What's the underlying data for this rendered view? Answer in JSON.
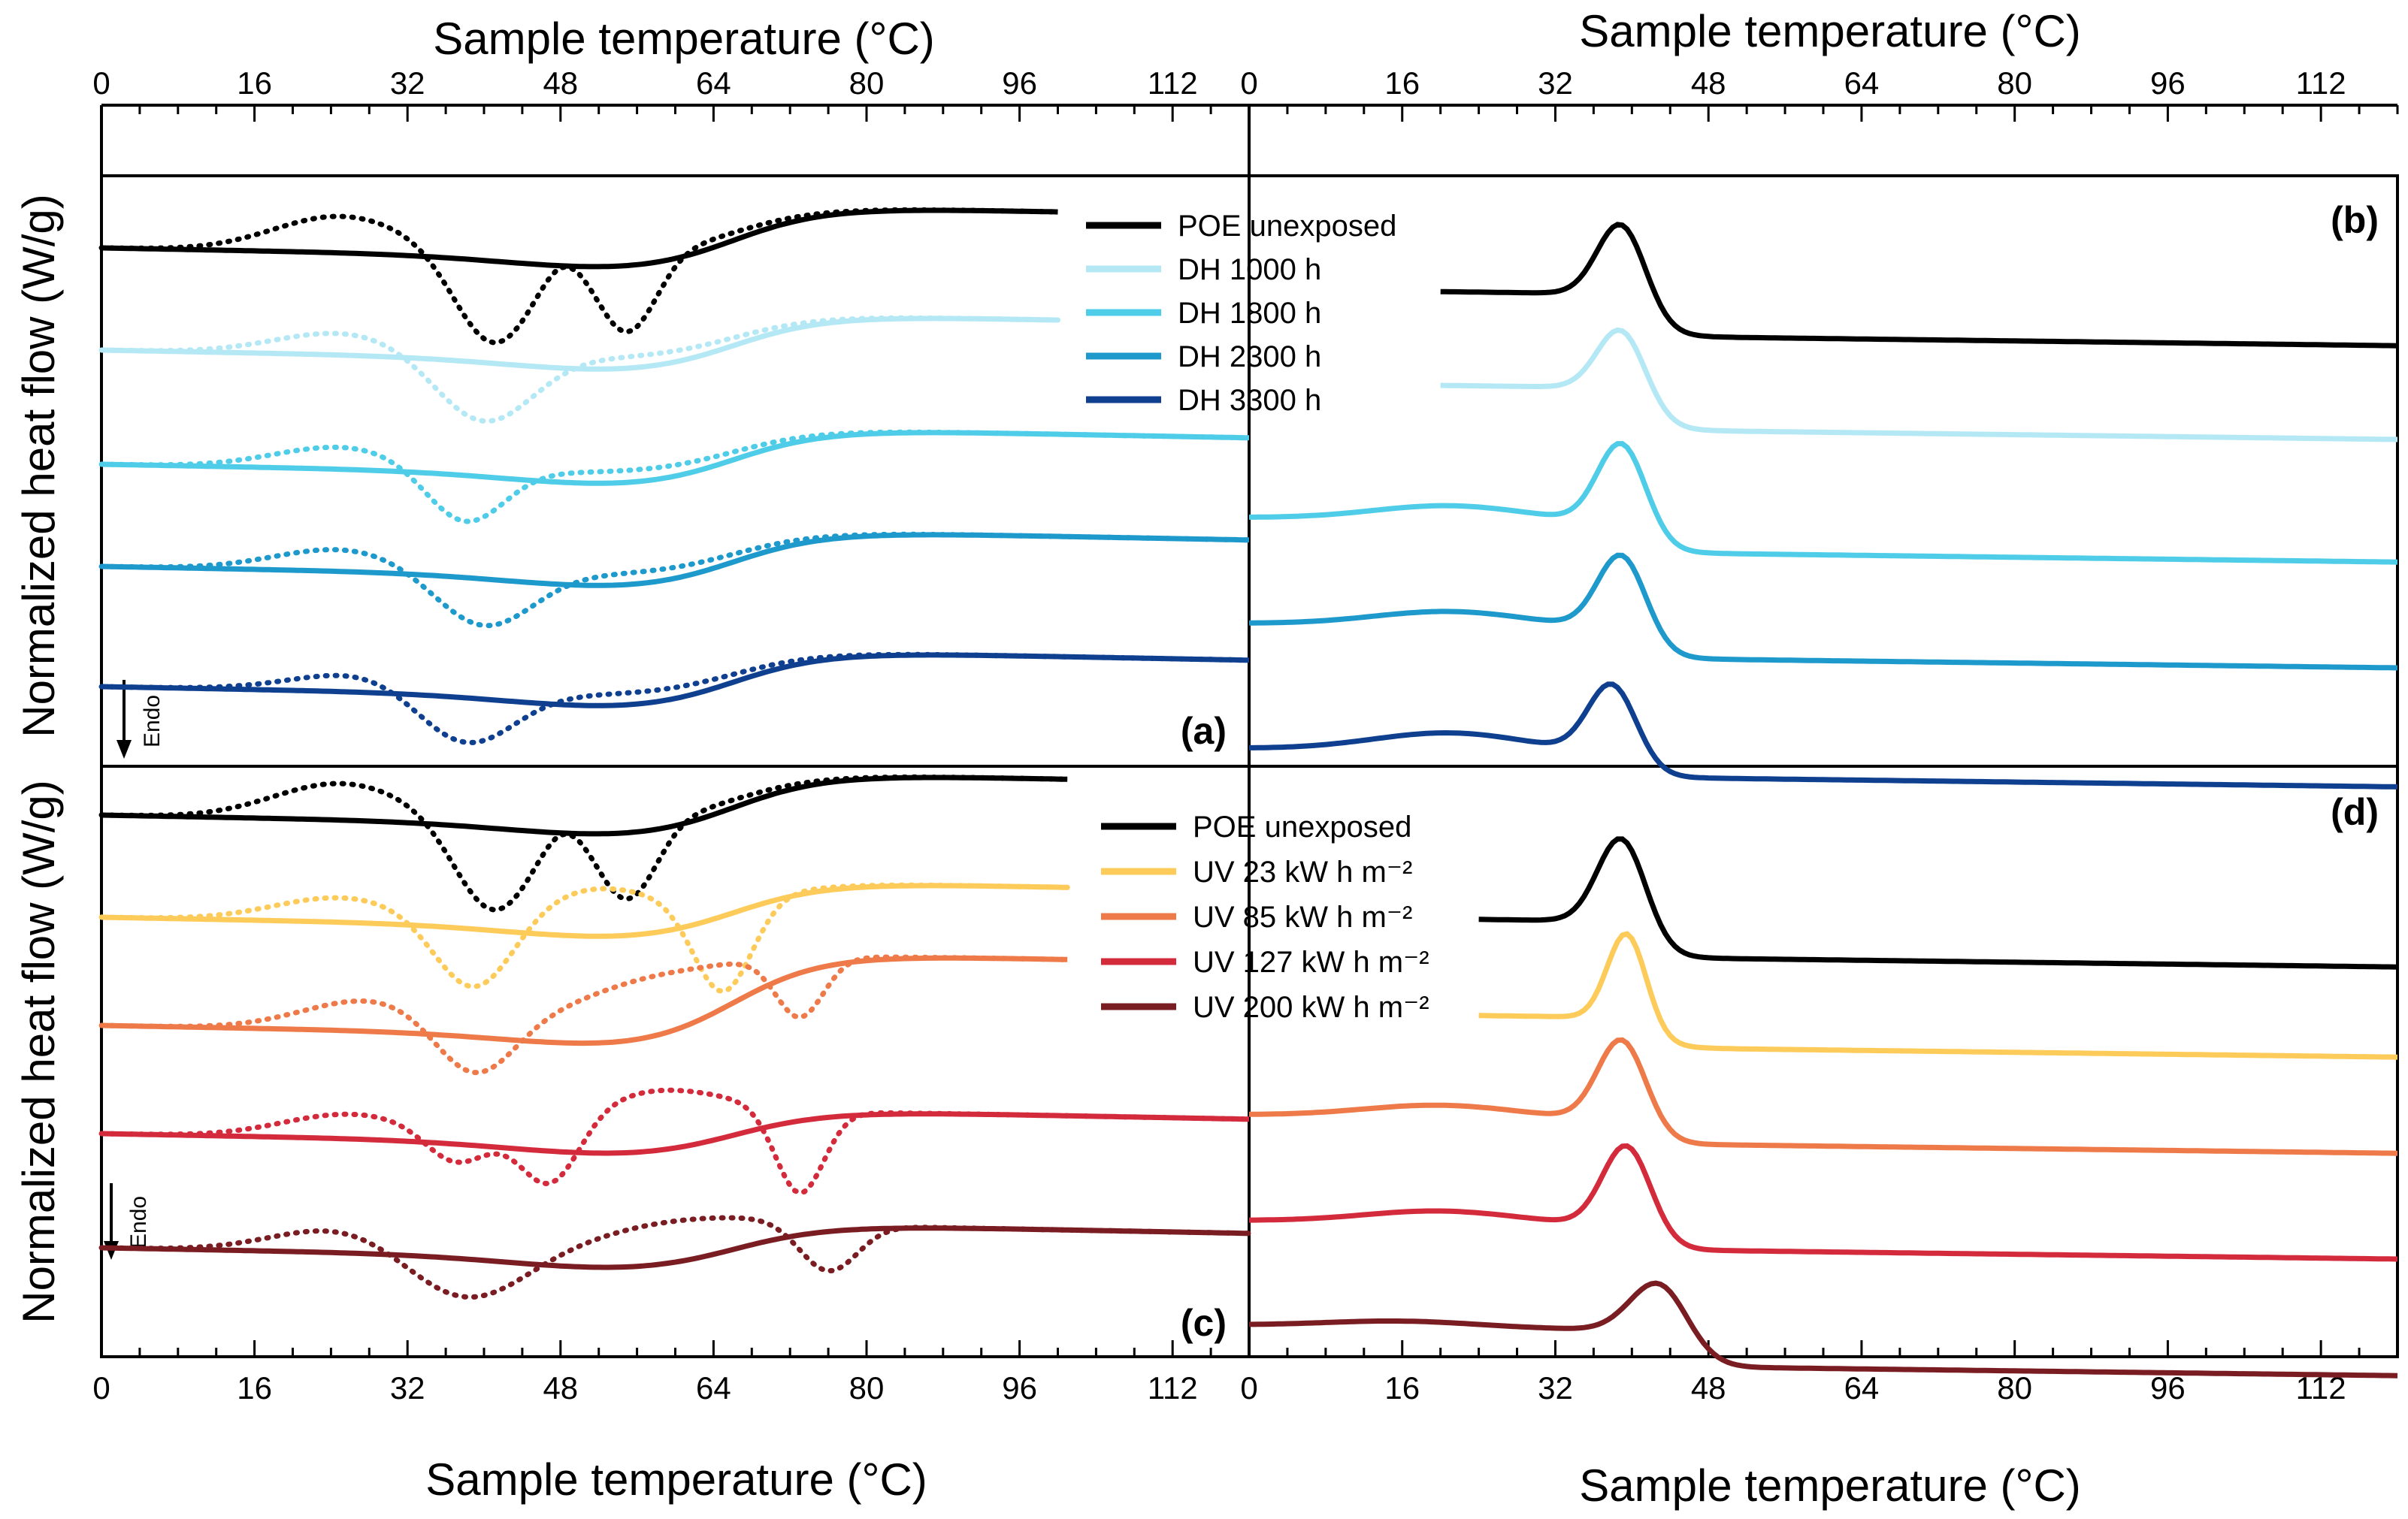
{
  "figure": {
    "xlabel": "Sample temperature (°C)",
    "ylabel": "Normalized heat flow (W/g)",
    "endo_label": "Endo"
  },
  "chart_data": [
    {
      "id": "a",
      "type": "line",
      "panel_label": "(a)",
      "xlabel": "Sample temperature (°C)",
      "ylabel": "Normalized heat flow (W/g)",
      "xlim": [
        0,
        120
      ],
      "xticks": [
        0,
        16,
        32,
        48,
        64,
        80,
        96,
        112
      ],
      "legend_position": "top-right",
      "note": "",
      "series": [
        {
          "name": "POE unexposed",
          "color": "#000000",
          "offset": 0.0,
          "xmax": 100,
          "step_amp": 0.045,
          "peaks": [
            [
              41,
              4,
              0.075
            ],
            [
              55,
              3,
              0.065
            ]
          ],
          "dips": [
            [
              25,
              7,
              0.03
            ],
            [
              48,
              2,
              0.01
            ]
          ],
          "reversing": true,
          "nonreversing": true
        },
        {
          "name": "DH 1000 h",
          "color": "#B5E8F5",
          "offset": 0.085,
          "xmax": 100,
          "step_amp": 0.04,
          "peaks": [
            [
              40,
              5,
              0.055
            ]
          ],
          "dips": [
            [
              25,
              7,
              0.018
            ]
          ],
          "reversing": true,
          "nonreversing": true
        },
        {
          "name": "DH 1800 h",
          "color": "#4FCDE8",
          "offset": 0.18,
          "xmax": 120,
          "step_amp": 0.04,
          "peaks": [
            [
              38,
              4,
              0.045
            ]
          ],
          "dips": [
            [
              25,
              7,
              0.018
            ]
          ],
          "reversing": true,
          "nonreversing": true
        },
        {
          "name": "DH 2300 h",
          "color": "#1E99CC",
          "offset": 0.265,
          "xmax": 120,
          "step_amp": 0.04,
          "peaks": [
            [
              40,
              5,
              0.045
            ]
          ],
          "dips": [
            [
              25,
              7,
              0.018
            ]
          ],
          "reversing": true,
          "nonreversing": true
        },
        {
          "name": "DH 3300 h",
          "color": "#0F3F8F",
          "offset": 0.365,
          "xmax": 120,
          "step_amp": 0.04,
          "peaks": [
            [
              38,
              5,
              0.045
            ]
          ],
          "dips": [
            [
              27,
              7,
              0.015
            ]
          ],
          "reversing": true,
          "nonreversing": true
        }
      ]
    },
    {
      "id": "b",
      "type": "line",
      "panel_label": "(b)",
      "xlabel": "Sample temperature (°C)",
      "xlim": [
        0,
        120
      ],
      "xticks": [
        0,
        16,
        32,
        48,
        64,
        80,
        96,
        112
      ],
      "series": [
        {
          "name": "POE unexposed",
          "color": "#000000",
          "offset": 0.0,
          "xmin": 20,
          "step": 0.035,
          "peak": [
            39,
            2.5,
            0.065
          ]
        },
        {
          "name": "DH 1000 h",
          "color": "#B5E8F5",
          "offset": 0.078,
          "xmin": 20,
          "step": 0.035,
          "peak": [
            39,
            2.5,
            0.055
          ]
        },
        {
          "name": "DH 1800 h",
          "color": "#4FCDE8",
          "offset": 0.19,
          "xmin": 0,
          "step": 0.025,
          "peak": [
            39,
            2.5,
            0.07
          ],
          "hump": [
            21,
            8,
            0.012
          ]
        },
        {
          "name": "DH 2300 h",
          "color": "#1E99CC",
          "offset": 0.278,
          "xmin": 0,
          "step": 0.025,
          "peak": [
            39,
            2.5,
            0.065
          ],
          "hump": [
            21,
            8,
            0.012
          ]
        },
        {
          "name": "DH 3300 h",
          "color": "#0F3F8F",
          "offset": 0.382,
          "xmin": 0,
          "step": 0.02,
          "peak": [
            38,
            2.5,
            0.06
          ],
          "hump": [
            21,
            8,
            0.015
          ]
        }
      ]
    },
    {
      "id": "c",
      "type": "line",
      "panel_label": "(c)",
      "xlabel": "Sample temperature (°C)",
      "ylabel": "Normalized heat flow (W/g)",
      "xlim": [
        0,
        120
      ],
      "xticks": [
        0,
        16,
        32,
        48,
        64,
        80,
        96,
        112
      ],
      "legend_position": "top-right",
      "series": [
        {
          "name": "POE unexposed",
          "color": "#000000",
          "offset": 0.0,
          "xmax": 101,
          "step_amp": 0.045,
          "peaks": [
            [
              41,
              4,
              0.075
            ],
            [
              55,
              3,
              0.065
            ]
          ],
          "dips": [
            [
              25,
              7,
              0.03
            ],
            [
              48,
              2,
              0.01
            ]
          ],
          "reversing": true,
          "nonreversing": true
        },
        {
          "name": "UV 23 kW h m⁻²",
          "color": "#FDCB5A",
          "offset": 0.085,
          "xmax": 101,
          "step_amp": 0.04,
          "peaks": [
            [
              39,
              4,
              0.06
            ],
            [
              65,
              3,
              0.075
            ]
          ],
          "dips": [
            [
              25,
              7,
              0.02
            ],
            [
              52,
              7,
              0.03
            ]
          ],
          "reversing": true,
          "nonreversing": true
        },
        {
          "name": "UV 85 kW h m⁻²",
          "color": "#EE7A4A",
          "offset": 0.175,
          "xmax": 101,
          "step_amp": 0.07,
          "peaks": [
            [
              39,
              4,
              0.045
            ],
            [
              73,
              2.5,
              0.05
            ]
          ],
          "dips": [
            [
              28,
              7,
              0.025
            ],
            [
              58,
              9,
              0.04
            ]
          ],
          "reversing": true,
          "nonreversing": true
        },
        {
          "name": "UV 127 kW h m⁻²",
          "color": "#D42B3C",
          "offset": 0.265,
          "xmax": 120,
          "step_amp": 0.03,
          "peaks": [
            [
              37,
              3,
              0.025
            ],
            [
              47,
              3,
              0.05
            ],
            [
              73,
              2.5,
              0.07
            ]
          ],
          "dips": [
            [
              26,
              7,
              0.02
            ],
            [
              58,
              8,
              0.04
            ]
          ],
          "reversing": true,
          "nonreversing": true
        },
        {
          "name": "UV 200 kW h m⁻²",
          "color": "#7A1D22",
          "offset": 0.36,
          "xmax": 120,
          "step_amp": 0.03,
          "peaks": [
            [
              38,
              6,
              0.04
            ],
            [
              76,
              3,
              0.04
            ]
          ],
          "dips": [
            [
              25,
              7,
              0.02
            ],
            [
              60,
              9,
              0.025
            ]
          ],
          "reversing": true,
          "nonreversing": true
        }
      ]
    },
    {
      "id": "d",
      "type": "line",
      "panel_label": "(d)",
      "xlabel": "Sample temperature (°C)",
      "xlim": [
        0,
        120
      ],
      "xticks": [
        0,
        16,
        32,
        48,
        64,
        80,
        96,
        112
      ],
      "series": [
        {
          "name": "POE unexposed",
          "color": "#000000",
          "offset": 0.0,
          "xmin": 24,
          "step": 0.03,
          "peak": [
            39,
            2.5,
            0.075
          ]
        },
        {
          "name": "UV 23 kW h m⁻²",
          "color": "#FDCB5A",
          "offset": 0.08,
          "xmin": 24,
          "step": 0.025,
          "peak": [
            39.5,
            2,
            0.075
          ]
        },
        {
          "name": "UV 85 kW h m⁻²",
          "color": "#EE7A4A",
          "offset": 0.165,
          "xmin": 0,
          "step": 0.02,
          "peak": [
            39,
            2.5,
            0.07
          ],
          "hump": [
            20,
            8,
            0.01
          ]
        },
        {
          "name": "UV 127 kW h m⁻²",
          "color": "#D42B3C",
          "offset": 0.253,
          "xmin": 0,
          "step": 0.02,
          "peak": [
            39.5,
            2.5,
            0.07
          ],
          "hump": [
            20,
            8,
            0.01
          ]
        },
        {
          "name": "UV 200 kW h m⁻²",
          "color": "#7A1D22",
          "offset": 0.34,
          "xmin": 0,
          "step": 0.03,
          "peak": [
            43,
            3,
            0.045
          ],
          "hump": [
            16,
            8,
            0.005
          ]
        }
      ]
    }
  ]
}
